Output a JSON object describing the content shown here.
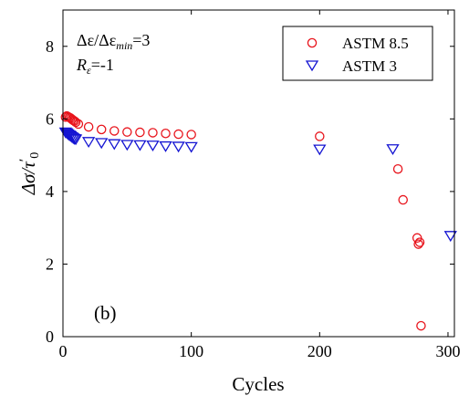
{
  "chart_data": {
    "type": "scatter",
    "panel_label": "(b)",
    "annotation_line1": "Δε/Δε",
    "annotation_line1_sub": "min",
    "annotation_line1_tail": "=3",
    "annotation_line2": "R",
    "annotation_line2_sub": "ε",
    "annotation_line2_tail": "=-1",
    "xlabel": "Cycles",
    "ylabel_main": "Δσ/τ",
    "ylabel_sub": "0",
    "ylabel_prime": "′",
    "xlim": [
      0,
      305
    ],
    "ylim": [
      0,
      9
    ],
    "xticks": [
      0,
      100,
      200,
      300
    ],
    "yticks": [
      0,
      2,
      4,
      6,
      8
    ],
    "grid": false,
    "legend_position": "top-right",
    "series": [
      {
        "name": "ASTM 8.5",
        "marker": "circle",
        "color": "#e8141c",
        "points": [
          [
            2,
            6.05
          ],
          [
            3,
            6.08
          ],
          [
            4,
            6.06
          ],
          [
            5,
            6.04
          ],
          [
            6,
            6.02
          ],
          [
            7,
            5.99
          ],
          [
            8,
            5.96
          ],
          [
            9,
            5.94
          ],
          [
            10,
            5.91
          ],
          [
            12,
            5.86
          ],
          [
            20,
            5.78
          ],
          [
            30,
            5.71
          ],
          [
            40,
            5.67
          ],
          [
            50,
            5.64
          ],
          [
            60,
            5.63
          ],
          [
            70,
            5.62
          ],
          [
            80,
            5.6
          ],
          [
            90,
            5.58
          ],
          [
            100,
            5.57
          ],
          [
            200,
            5.52
          ],
          [
            261,
            4.62
          ],
          [
            265,
            3.77
          ],
          [
            276,
            2.72
          ],
          [
            277,
            2.55
          ],
          [
            278,
            2.6
          ],
          [
            279,
            0.3
          ]
        ]
      },
      {
        "name": "ASTM 3",
        "marker": "triangle-down",
        "color": "#1414d2",
        "points": [
          [
            2,
            5.62
          ],
          [
            3,
            5.6
          ],
          [
            4,
            5.57
          ],
          [
            5,
            5.54
          ],
          [
            6,
            5.52
          ],
          [
            7,
            5.49
          ],
          [
            8,
            5.46
          ],
          [
            9,
            5.44
          ],
          [
            10,
            5.43
          ],
          [
            20,
            5.36
          ],
          [
            30,
            5.33
          ],
          [
            40,
            5.3
          ],
          [
            50,
            5.28
          ],
          [
            60,
            5.27
          ],
          [
            70,
            5.26
          ],
          [
            80,
            5.24
          ],
          [
            90,
            5.23
          ],
          [
            100,
            5.22
          ],
          [
            200,
            5.15
          ],
          [
            257,
            5.16
          ],
          [
            302,
            2.77
          ]
        ]
      }
    ]
  }
}
